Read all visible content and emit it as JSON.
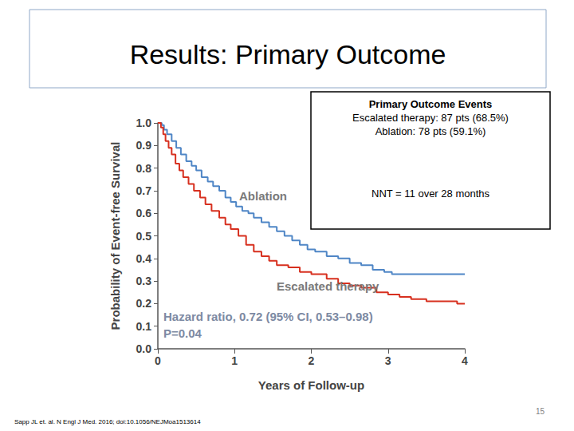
{
  "slide": {
    "title": "Results: Primary Outcome",
    "box": {
      "heading": "Primary Outcome Events",
      "lines": [
        "Escalated therapy: 87 pts (68.5%)",
        "Ablation: 78 pts (59.1%)"
      ],
      "note": "NNT = 11 over 28 months"
    },
    "citation": "Sapp JL et. al. N Engl J Med. 2016; doi:10.1056/NEJMoa1513614",
    "page": "15"
  },
  "chart_data": {
    "type": "line",
    "line_style": "step",
    "marker": "none",
    "grid": false,
    "x_label": "Years of Follow-up",
    "y_label": "Probability of Event-free Survival",
    "xlim": [
      0,
      4
    ],
    "xticks": [
      0,
      1,
      2,
      3,
      4
    ],
    "ylim": [
      0,
      1
    ],
    "yticks": [
      {
        "value": 0,
        "label": "0.0"
      },
      0.1,
      0.2,
      0.3,
      0.4,
      0.5,
      0.6,
      0.7,
      0.8,
      0.9,
      {
        "value": 1,
        "label": "1.0"
      }
    ],
    "annotations": [
      "Hazard ratio, 0.72 (95% CI, 0.53–0.98)",
      "P=0.04"
    ],
    "series": [
      {
        "name": "Ablation",
        "color": "#4f86c6",
        "x": [
          0,
          0.05,
          0.08,
          0.12,
          0.18,
          0.24,
          0.3,
          0.37,
          0.44,
          0.5,
          0.57,
          0.65,
          0.72,
          0.8,
          0.88,
          0.95,
          1.02,
          1.1,
          1.18,
          1.25,
          1.35,
          1.45,
          1.55,
          1.65,
          1.75,
          1.85,
          1.95,
          2.05,
          2.2,
          2.35,
          2.5,
          2.65,
          2.8,
          2.95,
          3.05,
          4.0
        ],
        "values": [
          1,
          0.99,
          0.97,
          0.95,
          0.92,
          0.89,
          0.86,
          0.83,
          0.81,
          0.79,
          0.76,
          0.74,
          0.72,
          0.7,
          0.67,
          0.65,
          0.63,
          0.61,
          0.6,
          0.58,
          0.56,
          0.54,
          0.52,
          0.5,
          0.48,
          0.46,
          0.44,
          0.43,
          0.41,
          0.4,
          0.38,
          0.37,
          0.35,
          0.34,
          0.33,
          0.33
        ]
      },
      {
        "name": "Escalated therapy",
        "color": "#d7301f",
        "x": [
          0,
          0.04,
          0.07,
          0.1,
          0.14,
          0.18,
          0.23,
          0.28,
          0.33,
          0.4,
          0.47,
          0.55,
          0.62,
          0.7,
          0.8,
          0.88,
          0.95,
          1.05,
          1.15,
          1.25,
          1.35,
          1.45,
          1.55,
          1.7,
          1.85,
          2.0,
          2.2,
          2.35,
          2.5,
          2.65,
          2.85,
          3.0,
          3.15,
          3.3,
          3.5,
          3.9,
          4.0
        ],
        "values": [
          1,
          0.98,
          0.95,
          0.92,
          0.89,
          0.86,
          0.82,
          0.79,
          0.76,
          0.73,
          0.7,
          0.67,
          0.64,
          0.61,
          0.58,
          0.55,
          0.53,
          0.5,
          0.46,
          0.43,
          0.41,
          0.39,
          0.37,
          0.36,
          0.34,
          0.33,
          0.31,
          0.29,
          0.28,
          0.27,
          0.25,
          0.24,
          0.23,
          0.22,
          0.21,
          0.2,
          0.2
        ]
      }
    ]
  }
}
